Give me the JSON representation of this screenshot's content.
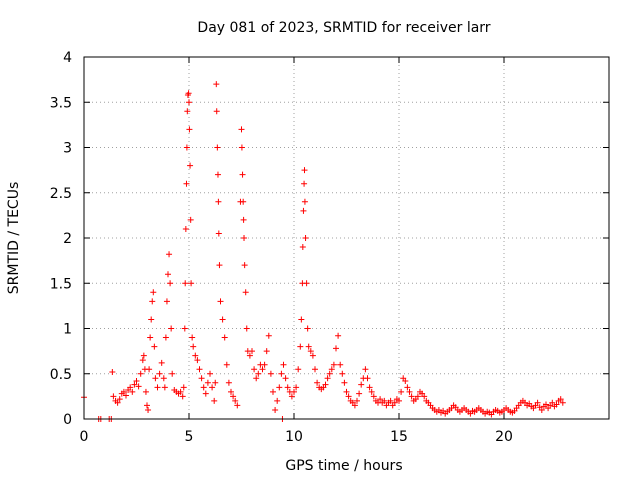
{
  "chart_data": {
    "type": "scatter",
    "title": "Day 081 of 2023, SRMTID for receiver larr",
    "xlabel": "GPS time / hours",
    "ylabel": "SRMTID / TECUs",
    "xlim": [
      0,
      25
    ],
    "ylim": [
      0,
      4
    ],
    "xticks": [
      0,
      5,
      10,
      15,
      20
    ],
    "xtick_labels": [
      "0",
      "5",
      "10",
      "15",
      "20"
    ],
    "yticks": [
      0,
      0.5,
      1,
      1.5,
      2,
      2.5,
      3,
      3.5,
      4
    ],
    "ytick_labels": [
      "0",
      "0.5",
      "1",
      "1.5",
      "2",
      "2.5",
      "3",
      "3.5",
      "4"
    ],
    "grid": true,
    "marker": "plus",
    "series_color": "#ff0000",
    "series": [
      {
        "name": "SRMTID",
        "points": [
          [
            0.0,
            0.24
          ],
          [
            0.7,
            0.0
          ],
          [
            0.8,
            0.0
          ],
          [
            1.2,
            0.0
          ],
          [
            1.3,
            0.0
          ],
          [
            1.35,
            0.52
          ],
          [
            1.4,
            0.25
          ],
          [
            1.5,
            0.2
          ],
          [
            1.6,
            0.18
          ],
          [
            1.7,
            0.22
          ],
          [
            1.8,
            0.28
          ],
          [
            1.9,
            0.3
          ],
          [
            2.0,
            0.26
          ],
          [
            2.1,
            0.32
          ],
          [
            2.2,
            0.35
          ],
          [
            2.3,
            0.3
          ],
          [
            2.4,
            0.38
          ],
          [
            2.5,
            0.42
          ],
          [
            2.6,
            0.36
          ],
          [
            2.7,
            0.5
          ],
          [
            2.8,
            0.65
          ],
          [
            2.85,
            0.7
          ],
          [
            2.9,
            0.55
          ],
          [
            2.95,
            0.3
          ],
          [
            3.0,
            0.15
          ],
          [
            3.05,
            0.1
          ],
          [
            3.1,
            0.55
          ],
          [
            3.15,
            0.9
          ],
          [
            3.2,
            1.1
          ],
          [
            3.25,
            1.3
          ],
          [
            3.3,
            1.4
          ],
          [
            3.35,
            0.8
          ],
          [
            3.4,
            0.45
          ],
          [
            3.5,
            0.35
          ],
          [
            3.6,
            0.5
          ],
          [
            3.7,
            0.62
          ],
          [
            3.8,
            0.45
          ],
          [
            3.85,
            0.35
          ],
          [
            3.9,
            0.9
          ],
          [
            3.95,
            1.3
          ],
          [
            4.0,
            1.6
          ],
          [
            4.05,
            1.82
          ],
          [
            4.1,
            1.5
          ],
          [
            4.15,
            1.0
          ],
          [
            4.2,
            0.5
          ],
          [
            4.3,
            0.32
          ],
          [
            4.4,
            0.3
          ],
          [
            4.5,
            0.28
          ],
          [
            4.6,
            0.3
          ],
          [
            4.7,
            0.25
          ],
          [
            4.75,
            0.35
          ],
          [
            4.8,
            1.0
          ],
          [
            4.82,
            1.5
          ],
          [
            4.85,
            2.1
          ],
          [
            4.88,
            2.6
          ],
          [
            4.9,
            3.0
          ],
          [
            4.92,
            3.4
          ],
          [
            4.95,
            3.58
          ],
          [
            4.98,
            3.6
          ],
          [
            5.0,
            3.5
          ],
          [
            5.02,
            3.2
          ],
          [
            5.05,
            2.8
          ],
          [
            5.08,
            2.2
          ],
          [
            5.1,
            1.5
          ],
          [
            5.15,
            0.9
          ],
          [
            5.2,
            0.8
          ],
          [
            5.3,
            0.7
          ],
          [
            5.4,
            0.65
          ],
          [
            5.5,
            0.55
          ],
          [
            5.6,
            0.45
          ],
          [
            5.7,
            0.35
          ],
          [
            5.8,
            0.28
          ],
          [
            5.9,
            0.4
          ],
          [
            6.0,
            0.5
          ],
          [
            6.1,
            0.35
          ],
          [
            6.2,
            0.2
          ],
          [
            6.25,
            0.4
          ],
          [
            6.3,
            3.7
          ],
          [
            6.32,
            3.4
          ],
          [
            6.35,
            3.0
          ],
          [
            6.38,
            2.7
          ],
          [
            6.4,
            2.4
          ],
          [
            6.42,
            2.05
          ],
          [
            6.45,
            1.7
          ],
          [
            6.5,
            1.3
          ],
          [
            6.6,
            1.1
          ],
          [
            6.7,
            0.9
          ],
          [
            6.8,
            0.6
          ],
          [
            6.9,
            0.4
          ],
          [
            7.0,
            0.3
          ],
          [
            7.1,
            0.25
          ],
          [
            7.2,
            0.2
          ],
          [
            7.3,
            0.15
          ],
          [
            7.45,
            2.4
          ],
          [
            7.5,
            3.2
          ],
          [
            7.52,
            3.0
          ],
          [
            7.55,
            2.7
          ],
          [
            7.58,
            2.4
          ],
          [
            7.6,
            2.2
          ],
          [
            7.62,
            2.0
          ],
          [
            7.65,
            1.7
          ],
          [
            7.7,
            1.4
          ],
          [
            7.75,
            1.0
          ],
          [
            7.8,
            0.75
          ],
          [
            7.9,
            0.7
          ],
          [
            8.0,
            0.75
          ],
          [
            8.1,
            0.55
          ],
          [
            8.2,
            0.45
          ],
          [
            8.3,
            0.5
          ],
          [
            8.4,
            0.6
          ],
          [
            8.5,
            0.55
          ],
          [
            8.6,
            0.6
          ],
          [
            8.7,
            0.75
          ],
          [
            8.8,
            0.92
          ],
          [
            8.9,
            0.5
          ],
          [
            9.0,
            0.3
          ],
          [
            9.1,
            0.1
          ],
          [
            9.2,
            0.2
          ],
          [
            9.3,
            0.35
          ],
          [
            9.4,
            0.5
          ],
          [
            9.45,
            0.0
          ],
          [
            9.5,
            0.6
          ],
          [
            9.6,
            0.45
          ],
          [
            9.7,
            0.35
          ],
          [
            9.8,
            0.3
          ],
          [
            9.9,
            0.25
          ],
          [
            10.0,
            0.3
          ],
          [
            10.1,
            0.35
          ],
          [
            10.2,
            0.55
          ],
          [
            10.3,
            0.8
          ],
          [
            10.35,
            1.1
          ],
          [
            10.4,
            1.5
          ],
          [
            10.42,
            1.9
          ],
          [
            10.45,
            2.3
          ],
          [
            10.48,
            2.6
          ],
          [
            10.5,
            2.75
          ],
          [
            10.52,
            2.4
          ],
          [
            10.55,
            2.0
          ],
          [
            10.6,
            1.5
          ],
          [
            10.65,
            1.0
          ],
          [
            10.7,
            0.8
          ],
          [
            10.8,
            0.75
          ],
          [
            10.9,
            0.7
          ],
          [
            11.0,
            0.55
          ],
          [
            11.1,
            0.4
          ],
          [
            11.2,
            0.35
          ],
          [
            11.3,
            0.33
          ],
          [
            11.4,
            0.35
          ],
          [
            11.5,
            0.38
          ],
          [
            11.6,
            0.45
          ],
          [
            11.7,
            0.5
          ],
          [
            11.8,
            0.55
          ],
          [
            11.9,
            0.6
          ],
          [
            12.0,
            0.78
          ],
          [
            12.1,
            0.92
          ],
          [
            12.2,
            0.6
          ],
          [
            12.3,
            0.5
          ],
          [
            12.4,
            0.4
          ],
          [
            12.5,
            0.3
          ],
          [
            12.6,
            0.25
          ],
          [
            12.7,
            0.2
          ],
          [
            12.8,
            0.18
          ],
          [
            12.9,
            0.15
          ],
          [
            13.0,
            0.2
          ],
          [
            13.1,
            0.28
          ],
          [
            13.2,
            0.38
          ],
          [
            13.3,
            0.45
          ],
          [
            13.4,
            0.55
          ],
          [
            13.5,
            0.45
          ],
          [
            13.6,
            0.35
          ],
          [
            13.7,
            0.3
          ],
          [
            13.8,
            0.25
          ],
          [
            13.9,
            0.2
          ],
          [
            14.0,
            0.18
          ],
          [
            14.1,
            0.22
          ],
          [
            14.2,
            0.18
          ],
          [
            14.3,
            0.2
          ],
          [
            14.4,
            0.15
          ],
          [
            14.5,
            0.18
          ],
          [
            14.6,
            0.2
          ],
          [
            14.7,
            0.15
          ],
          [
            14.8,
            0.18
          ],
          [
            14.9,
            0.22
          ],
          [
            15.0,
            0.2
          ],
          [
            15.1,
            0.3
          ],
          [
            15.2,
            0.45
          ],
          [
            15.3,
            0.42
          ],
          [
            15.4,
            0.35
          ],
          [
            15.5,
            0.3
          ],
          [
            15.6,
            0.25
          ],
          [
            15.7,
            0.2
          ],
          [
            15.8,
            0.22
          ],
          [
            15.9,
            0.25
          ],
          [
            16.0,
            0.3
          ],
          [
            16.1,
            0.28
          ],
          [
            16.2,
            0.25
          ],
          [
            16.3,
            0.2
          ],
          [
            16.4,
            0.18
          ],
          [
            16.5,
            0.15
          ],
          [
            16.6,
            0.12
          ],
          [
            16.7,
            0.1
          ],
          [
            16.8,
            0.08
          ],
          [
            16.9,
            0.1
          ],
          [
            17.0,
            0.07
          ],
          [
            17.1,
            0.09
          ],
          [
            17.2,
            0.06
          ],
          [
            17.3,
            0.08
          ],
          [
            17.4,
            0.1
          ],
          [
            17.5,
            0.12
          ],
          [
            17.6,
            0.15
          ],
          [
            17.7,
            0.13
          ],
          [
            17.8,
            0.1
          ],
          [
            17.9,
            0.08
          ],
          [
            18.0,
            0.1
          ],
          [
            18.1,
            0.12
          ],
          [
            18.2,
            0.1
          ],
          [
            18.3,
            0.08
          ],
          [
            18.4,
            0.06
          ],
          [
            18.5,
            0.09
          ],
          [
            18.6,
            0.08
          ],
          [
            18.7,
            0.1
          ],
          [
            18.8,
            0.12
          ],
          [
            18.9,
            0.1
          ],
          [
            19.0,
            0.08
          ],
          [
            19.1,
            0.06
          ],
          [
            19.2,
            0.08
          ],
          [
            19.3,
            0.07
          ],
          [
            19.4,
            0.05
          ],
          [
            19.5,
            0.08
          ],
          [
            19.6,
            0.1
          ],
          [
            19.7,
            0.09
          ],
          [
            19.8,
            0.07
          ],
          [
            19.9,
            0.08
          ],
          [
            20.0,
            0.1
          ],
          [
            20.1,
            0.12
          ],
          [
            20.2,
            0.1
          ],
          [
            20.3,
            0.08
          ],
          [
            20.4,
            0.07
          ],
          [
            20.5,
            0.09
          ],
          [
            20.6,
            0.12
          ],
          [
            20.7,
            0.15
          ],
          [
            20.8,
            0.18
          ],
          [
            20.9,
            0.2
          ],
          [
            21.0,
            0.18
          ],
          [
            21.1,
            0.15
          ],
          [
            21.2,
            0.17
          ],
          [
            21.3,
            0.14
          ],
          [
            21.4,
            0.12
          ],
          [
            21.5,
            0.15
          ],
          [
            21.6,
            0.18
          ],
          [
            21.7,
            0.13
          ],
          [
            21.8,
            0.1
          ],
          [
            21.9,
            0.14
          ],
          [
            22.0,
            0.16
          ],
          [
            22.1,
            0.12
          ],
          [
            22.2,
            0.15
          ],
          [
            22.3,
            0.18
          ],
          [
            22.4,
            0.14
          ],
          [
            22.5,
            0.16
          ],
          [
            22.6,
            0.2
          ],
          [
            22.7,
            0.22
          ],
          [
            22.8,
            0.18
          ]
        ]
      }
    ]
  }
}
